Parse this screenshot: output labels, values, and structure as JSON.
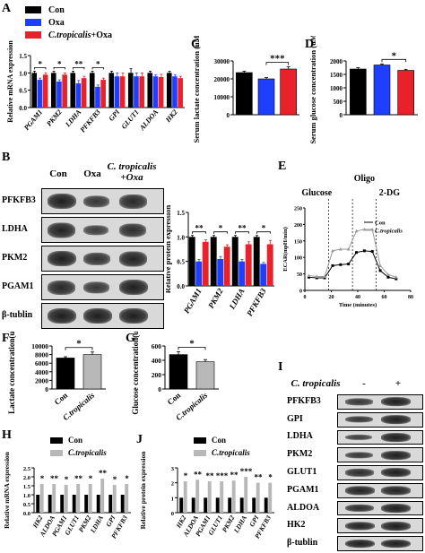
{
  "labels": {
    "A": "A",
    "B": "B",
    "C": "C",
    "D": "D",
    "E": "E",
    "F": "F",
    "G": "G",
    "H": "H",
    "I": "I",
    "J": "J"
  },
  "colors": {
    "con": "#000000",
    "oxa": "#1f3fff",
    "ctrop_oxa": "#e8212a",
    "ctrop": "#b8b8b8"
  },
  "chart_data": [
    {
      "id": "A",
      "type": "bar",
      "legend": [
        "Con",
        "Oxa",
        "C.tropicalis+Oxa"
      ],
      "categories": [
        "PGAM1",
        "PKM2",
        "LDHA",
        "PFKFB3",
        "GPI",
        "GLUT1",
        "ALDOA",
        "HK2"
      ],
      "series": [
        {
          "name": "Con",
          "values": [
            1.0,
            1.0,
            1.0,
            1.0,
            1.0,
            1.0,
            1.0,
            1.0
          ],
          "err": [
            0.05,
            0.05,
            0.05,
            0.05,
            0.05,
            0.12,
            0.05,
            0.05
          ]
        },
        {
          "name": "Oxa",
          "values": [
            0.8,
            0.75,
            0.7,
            0.6,
            0.9,
            0.9,
            0.9,
            0.9
          ],
          "err": [
            0.05,
            0.05,
            0.08,
            0.05,
            0.1,
            0.1,
            0.05,
            0.05
          ]
        },
        {
          "name": "C.tropicalis+Oxa",
          "values": [
            0.95,
            0.95,
            0.85,
            0.8,
            0.9,
            0.9,
            0.88,
            0.85
          ],
          "err": [
            0.05,
            0.05,
            0.05,
            0.05,
            0.1,
            0.1,
            0.08,
            0.05
          ]
        }
      ],
      "ylabel": "Relative mRNA expression",
      "ylim": [
        0,
        1.5
      ],
      "yticks": [
        "0.0",
        "0.5",
        "1.0",
        "1.5"
      ],
      "sig": [
        "*",
        "*",
        "**",
        "*"
      ]
    },
    {
      "id": "C",
      "type": "bar",
      "categories": [
        "Con",
        "Oxa",
        "C.tropicalis+Oxa"
      ],
      "values": [
        23500,
        20000,
        25500
      ],
      "err": [
        800,
        700,
        1200
      ],
      "ylabel": "Serum lactate concentration (uM)",
      "ylim": [
        0,
        30000
      ],
      "yticks": [
        "0",
        "10000",
        "20000",
        "30000"
      ],
      "sig": "***"
    },
    {
      "id": "D",
      "type": "bar",
      "categories": [
        "Con",
        "Oxa",
        "C.tropicalis+Oxa"
      ],
      "values": [
        1700,
        1850,
        1650
      ],
      "err": [
        50,
        40,
        40
      ],
      "ylabel": "Serum glucose concentration (uM)",
      "ylim": [
        0,
        2000
      ],
      "yticks": [
        "0",
        "500",
        "1000",
        "1500",
        "2000"
      ],
      "sig": "*"
    },
    {
      "id": "B_quant",
      "type": "bar",
      "categories": [
        "PGAM1",
        "PKM2",
        "LDHA",
        "PFKFB3"
      ],
      "series": [
        {
          "name": "Con",
          "values": [
            1.0,
            1.0,
            1.0,
            1.0
          ],
          "err": [
            0.03,
            0.03,
            0.03,
            0.03
          ]
        },
        {
          "name": "Oxa",
          "values": [
            0.5,
            0.55,
            0.5,
            0.45
          ],
          "err": [
            0.04,
            0.05,
            0.04,
            0.03
          ]
        },
        {
          "name": "C.tropicalis+Oxa",
          "values": [
            0.9,
            0.8,
            0.85,
            0.85
          ],
          "err": [
            0.04,
            0.04,
            0.05,
            0.08
          ]
        }
      ],
      "ylabel": "Relative protein expression",
      "ylim": [
        0,
        1.5
      ],
      "yticks": [
        "0.0",
        "0.5",
        "1.0",
        "1.5"
      ],
      "sig": [
        "**",
        "*",
        "**",
        "*"
      ]
    },
    {
      "id": "E",
      "type": "line",
      "legend": [
        "Con",
        "C.tropicalis"
      ],
      "xlabel": "Time (minutes)",
      "ylabel": "ECAR(mpH/min)",
      "xlim": [
        0,
        80
      ],
      "ylim": [
        0,
        250
      ],
      "xticks": [
        "0",
        "20",
        "40",
        "60",
        "80"
      ],
      "yticks": [
        "0",
        "50",
        "100",
        "150",
        "200",
        "250"
      ],
      "markers": [
        "Glucose",
        "Oligo",
        "2-DG"
      ],
      "series": [
        {
          "name": "Con",
          "x": [
            3,
            9,
            15,
            21,
            27,
            33,
            39,
            45,
            51,
            57,
            63,
            69
          ],
          "y": [
            40,
            38,
            38,
            75,
            78,
            80,
            115,
            120,
            118,
            60,
            40,
            35
          ]
        },
        {
          "name": "C.tropicalis",
          "x": [
            3,
            9,
            15,
            21,
            27,
            33,
            39,
            45,
            51,
            57,
            63,
            69
          ],
          "y": [
            45,
            42,
            42,
            120,
            125,
            125,
            180,
            185,
            185,
            75,
            48,
            40
          ]
        }
      ]
    },
    {
      "id": "F",
      "type": "bar",
      "categories": [
        "Con",
        "C.tropicalis"
      ],
      "values": [
        7200,
        8000
      ],
      "err": [
        300,
        600
      ],
      "ylabel": "Lactate concentration(uM)",
      "ylim": [
        0,
        10000
      ],
      "yticks": [
        "0",
        "2000",
        "4000",
        "6000",
        "8000",
        "10000"
      ],
      "sig": "*"
    },
    {
      "id": "G",
      "type": "bar",
      "categories": [
        "Con",
        "C.tropicalis"
      ],
      "values": [
        480,
        380
      ],
      "err": [
        40,
        30
      ],
      "ylabel": "Glucose concentration(uM)",
      "ylim": [
        0,
        600
      ],
      "yticks": [
        "0",
        "200",
        "400",
        "600"
      ],
      "sig": "*"
    },
    {
      "id": "H",
      "type": "bar",
      "legend": [
        "Con",
        "C.tropicalis"
      ],
      "categories": [
        "HK2",
        "ALDOA",
        "PGAM1",
        "GLUT1",
        "PKM2",
        "LDHA",
        "GPI",
        "PFKFB3"
      ],
      "series": [
        {
          "name": "Con",
          "values": [
            1.0,
            1.0,
            1.0,
            1.0,
            1.0,
            1.0,
            1.0,
            1.0
          ]
        },
        {
          "name": "C.tropicalis",
          "values": [
            1.6,
            1.6,
            1.55,
            1.6,
            1.6,
            1.9,
            1.55,
            1.6
          ]
        }
      ],
      "ylabel": "Relative mRNA expression",
      "ylim": [
        0,
        2.5
      ],
      "yticks": [
        "0.0",
        "0.5",
        "1.0",
        "1.5",
        "2.0",
        "2.5"
      ],
      "sig": [
        "*",
        "**",
        "*",
        "**",
        "*",
        "**",
        "*",
        "*"
      ]
    },
    {
      "id": "J",
      "type": "bar",
      "legend": [
        "Con",
        "C.tropicalis"
      ],
      "categories": [
        "HK2",
        "ALDOA",
        "PGAM1",
        "GLUT1",
        "PKM2",
        "LDHA",
        "GPI",
        "PFKFB3"
      ],
      "series": [
        {
          "name": "Con",
          "values": [
            1.0,
            1.0,
            1.0,
            1.0,
            1.0,
            1.0,
            1.0,
            1.0
          ]
        },
        {
          "name": "C.tropicalis",
          "values": [
            2.1,
            2.2,
            2.1,
            2.1,
            2.15,
            2.4,
            2.0,
            2.0
          ]
        }
      ],
      "ylabel": "Relative protein expression",
      "ylim": [
        0,
        3
      ],
      "yticks": [
        "0",
        "1",
        "2",
        "3"
      ],
      "sig": [
        "*",
        "**",
        "**",
        "***",
        "**",
        "***",
        "**",
        "*"
      ]
    }
  ],
  "blotB": {
    "headers": [
      "Con",
      "Oxa",
      "C. tropicalis +Oxa"
    ],
    "rows": [
      {
        "name": "PFKFB3",
        "bands": [
          0.95,
          0.7,
          0.85
        ]
      },
      {
        "name": "LDHA",
        "bands": [
          0.9,
          0.6,
          0.8
        ]
      },
      {
        "name": "PKM2",
        "bands": [
          0.95,
          0.75,
          0.9
        ]
      },
      {
        "name": "PGAM1",
        "bands": [
          0.85,
          0.7,
          0.95
        ]
      },
      {
        "name": "β-tublin",
        "bands": [
          0.95,
          0.95,
          0.95
        ]
      }
    ]
  },
  "blotI": {
    "header": "C. tropicalis",
    "minus": "-",
    "plus": "+",
    "rows": [
      {
        "name": "PFKFB3",
        "bands": [
          0.7,
          0.95
        ]
      },
      {
        "name": "GPI",
        "bands": [
          0.7,
          0.95
        ]
      },
      {
        "name": "LDHA",
        "bands": [
          0.6,
          0.95
        ]
      },
      {
        "name": "PKM2",
        "bands": [
          0.7,
          0.95
        ]
      },
      {
        "name": "GLUT1",
        "bands": [
          0.8,
          0.95
        ]
      },
      {
        "name": "PGAM1",
        "bands": [
          0.9,
          0.9
        ]
      },
      {
        "name": "ALDOA",
        "bands": [
          0.8,
          0.95
        ]
      },
      {
        "name": "HK2",
        "bands": [
          0.9,
          0.95
        ]
      },
      {
        "name": "β-tublin",
        "bands": [
          0.95,
          0.95
        ]
      }
    ]
  }
}
